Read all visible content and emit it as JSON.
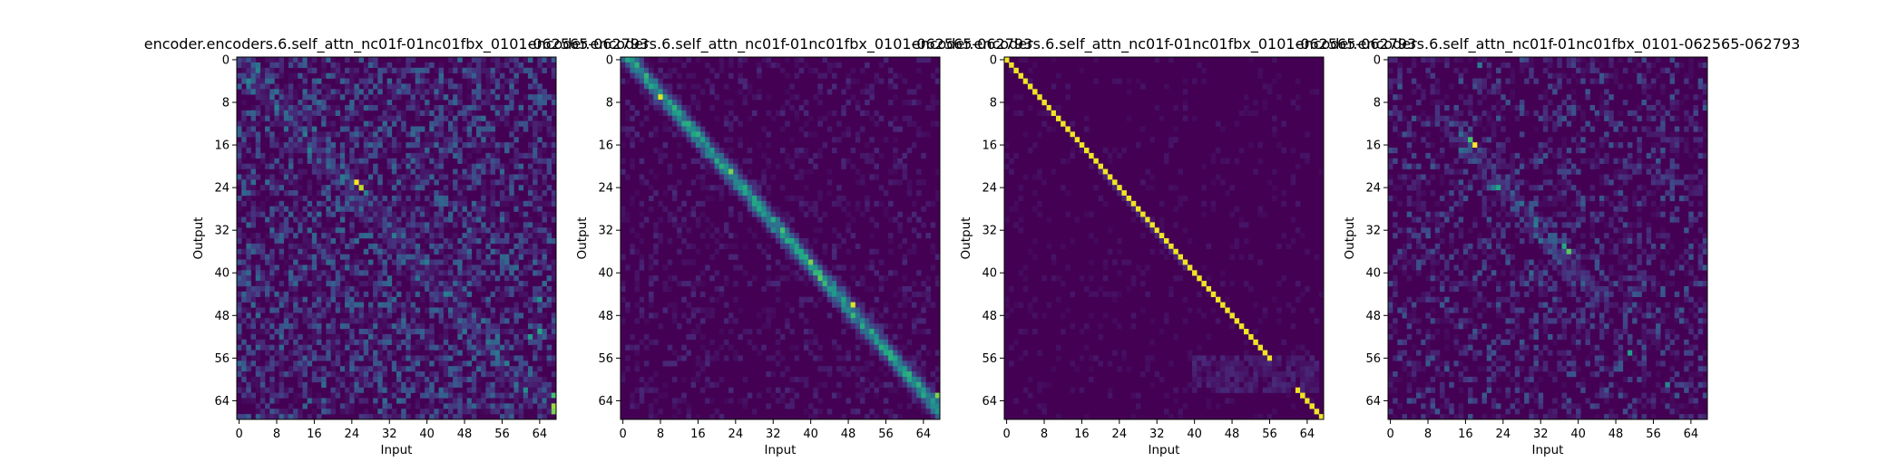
{
  "chart_data": [
    {
      "type": "heatmap",
      "title": "encoder.encoders.6.self_attn_nc01f-01nc01fbx_0101-062565-062793",
      "xlabel": "Input",
      "ylabel": "Output",
      "x_ticks": [
        "0",
        "8",
        "16",
        "24",
        "32",
        "40",
        "48",
        "56",
        "64"
      ],
      "y_ticks": [
        "0",
        "8",
        "16",
        "24",
        "32",
        "40",
        "48",
        "56",
        "64"
      ],
      "n_rows": 68,
      "n_cols": 68,
      "colormap": "viridis",
      "pattern": "diffuse",
      "hotspots": [
        [
          23,
          25,
          1.0
        ],
        [
          24,
          26,
          0.9
        ],
        [
          65,
          67,
          0.85
        ],
        [
          66,
          67,
          0.8
        ],
        [
          63,
          67,
          0.7
        ],
        [
          51,
          64,
          0.6
        ],
        [
          52,
          62,
          0.55
        ],
        [
          45,
          64,
          0.5
        ],
        [
          62,
          61,
          0.5
        ]
      ]
    },
    {
      "type": "heatmap",
      "title": "encoder.encoders.6.self_attn_nc01f-01nc01fbx_0101-062565-062793",
      "xlabel": "Input",
      "ylabel": "Output",
      "x_ticks": [
        "0",
        "8",
        "16",
        "24",
        "32",
        "40",
        "48",
        "56",
        "64"
      ],
      "y_ticks": [
        "0",
        "8",
        "16",
        "24",
        "32",
        "40",
        "48",
        "56",
        "64"
      ],
      "n_rows": 68,
      "n_cols": 68,
      "colormap": "viridis",
      "pattern": "diagonal-soft",
      "hotspots": [
        [
          7,
          8,
          0.95
        ],
        [
          21,
          23,
          0.8
        ],
        [
          38,
          40,
          0.8
        ],
        [
          46,
          49,
          0.95
        ],
        [
          63,
          67,
          0.8
        ],
        [
          66,
          68,
          0.95
        ],
        [
          32,
          34,
          0.7
        ],
        [
          12,
          14,
          0.6
        ]
      ]
    },
    {
      "type": "heatmap",
      "title": "encoder.encoders.6.self_attn_nc01f-01nc01fbx_0101-062565-062793",
      "xlabel": "Input",
      "ylabel": "Output",
      "x_ticks": [
        "0",
        "8",
        "16",
        "24",
        "32",
        "40",
        "48",
        "56",
        "64"
      ],
      "y_ticks": [
        "0",
        "8",
        "16",
        "24",
        "32",
        "40",
        "48",
        "56",
        "64"
      ],
      "n_rows": 68,
      "n_cols": 68,
      "colormap": "viridis",
      "pattern": "diagonal-sharp",
      "hotspots": []
    },
    {
      "type": "heatmap",
      "title": "encoder.encoders.6.self_attn_nc01f-01nc01fbx_0101-062565-062793",
      "xlabel": "Input",
      "ylabel": "Output",
      "x_ticks": [
        "0",
        "8",
        "16",
        "24",
        "32",
        "40",
        "48",
        "56",
        "64"
      ],
      "y_ticks": [
        "0",
        "8",
        "16",
        "24",
        "32",
        "40",
        "48",
        "56",
        "64"
      ],
      "n_rows": 68,
      "n_cols": 68,
      "colormap": "viridis",
      "pattern": "sparse",
      "hotspots": [
        [
          16,
          18,
          1.0
        ],
        [
          15,
          17,
          0.7
        ],
        [
          24,
          23,
          0.6
        ],
        [
          36,
          38,
          0.75
        ],
        [
          35,
          37,
          0.6
        ],
        [
          55,
          51,
          0.55
        ],
        [
          61,
          59,
          0.45
        ],
        [
          1,
          19,
          0.4
        ],
        [
          40,
          30,
          0.35
        ]
      ]
    }
  ]
}
